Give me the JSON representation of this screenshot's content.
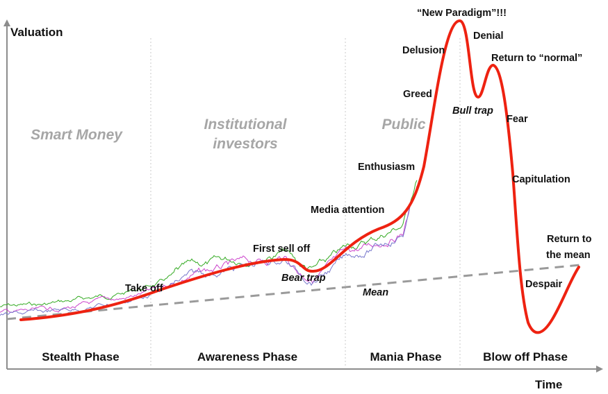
{
  "axes": {
    "y_label": "Valuation",
    "x_label": "Time"
  },
  "groups": [
    "Smart Money",
    "Institutional",
    "investors",
    "Public"
  ],
  "phases": [
    "Stealth Phase",
    "Awareness Phase",
    "Mania Phase",
    "Blow off Phase"
  ],
  "annotations": {
    "take_off": "Take off",
    "first_sell_off": "First sell off",
    "bear_trap": "Bear trap",
    "mean": "Mean",
    "media_attention": "Media attention",
    "enthusiasm": "Enthusiasm",
    "greed": "Greed",
    "delusion": "Delusion",
    "new_paradigm": "“New Paradigm”!!!",
    "denial": "Denial",
    "return_to_normal": "Return to “normal”",
    "bull_trap": "Bull trap",
    "fear": "Fear",
    "capitulation": "Capitulation",
    "despair": "Despair",
    "return_to_the_mean_line1": "Return to",
    "return_to_the_mean_line2": "the mean"
  },
  "colors": {
    "valuation_curve": "#ee2211",
    "mean_line": "#9a9a9a",
    "axis": "#8c8c8c",
    "phase_divider": "#c8c8c8",
    "noise_series": [
      "#33aa22",
      "#cc44cc",
      "#7777cc"
    ]
  }
}
